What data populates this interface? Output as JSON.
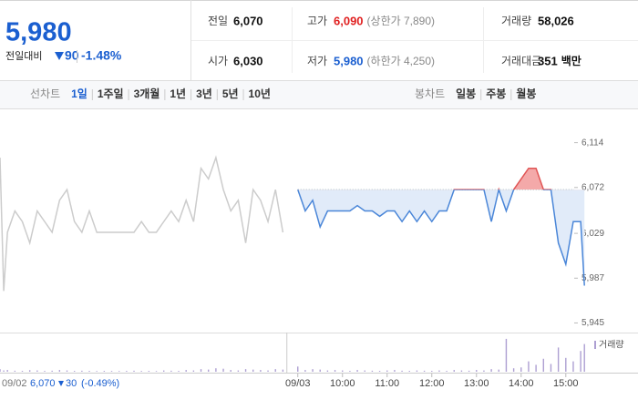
{
  "header": {
    "price": "5,980",
    "change_label": "전일대비",
    "change": "90",
    "change_pct": "-1.48%",
    "stats": [
      [
        {
          "label": "전일",
          "value": "6,070"
        },
        {
          "label": "고가",
          "value": "6,090",
          "note": "(상한가 7,890)"
        },
        {
          "label": "거래량",
          "value": "58,026"
        }
      ],
      [
        {
          "label": "시가",
          "value": "6,030"
        },
        {
          "label": "저가",
          "value": "5,980",
          "note": "(하한가 4,250)"
        },
        {
          "label": "거래대금",
          "value": "351",
          "unit": "백만"
        }
      ]
    ]
  },
  "tabs": {
    "line_label": "선차트",
    "line": [
      "1일",
      "1주일",
      "3개월",
      "1년",
      "3년",
      "5년",
      "10년"
    ],
    "candle_label": "봉차트",
    "candle": [
      "일봉",
      "주봉",
      "월봉"
    ]
  },
  "chart_data": {
    "type": "line",
    "xlim": [
      -400,
      408
    ],
    "ylim": [
      5936,
      6141
    ],
    "yticks": [
      {
        "value": 6114,
        "label": "6,114"
      },
      {
        "value": 6072,
        "label": "6,072"
      },
      {
        "value": 6029,
        "label": "6,029"
      },
      {
        "value": 5987,
        "label": "5,987"
      },
      {
        "value": 5945,
        "label": "5,945"
      }
    ],
    "xticks": [
      {
        "value": 0,
        "label": "09/03"
      },
      {
        "value": 60,
        "label": "10:00"
      },
      {
        "value": 120,
        "label": "11:00"
      },
      {
        "value": 180,
        "label": "12:00"
      },
      {
        "value": 240,
        "label": "13:00"
      },
      {
        "value": 300,
        "label": "14:00"
      },
      {
        "value": 360,
        "label": "15:00"
      }
    ],
    "baseline": 6070,
    "fill_above": "#f4a9a9",
    "fill_below": "#e1ebf9",
    "series": [
      {
        "color": "#cccccc",
        "x": [
          -400,
          -395,
          -390,
          -380,
          -370,
          -360,
          -350,
          -340,
          -330,
          -320,
          -310,
          -300,
          -290,
          -280,
          -270,
          -260,
          -250,
          -240,
          -230,
          -220,
          -210,
          -200,
          -190,
          -180,
          -170,
          -160,
          -150,
          -140,
          -130,
          -120,
          -110,
          -100,
          -90,
          -80,
          -70,
          -60,
          -50,
          -40,
          -30,
          -20
        ],
        "values": [
          6100,
          5975,
          6030,
          6050,
          6040,
          6020,
          6050,
          6040,
          6030,
          6060,
          6070,
          6040,
          6030,
          6050,
          6030,
          6030,
          6030,
          6030,
          6030,
          6030,
          6040,
          6030,
          6030,
          6040,
          6050,
          6040,
          6060,
          6040,
          6090,
          6080,
          6100,
          6070,
          6050,
          6060,
          6020,
          6070,
          6060,
          6040,
          6070,
          6030
        ]
      },
      {
        "color": "#4a86d8",
        "color_above": "#e05555",
        "x": [
          0,
          10,
          20,
          30,
          40,
          50,
          60,
          70,
          80,
          90,
          100,
          110,
          120,
          130,
          140,
          150,
          160,
          170,
          180,
          190,
          200,
          210,
          220,
          230,
          240,
          250,
          260,
          270,
          280,
          290,
          300,
          310,
          320,
          330,
          340,
          350,
          360,
          370,
          380,
          385
        ],
        "values": [
          6070,
          6050,
          6060,
          6035,
          6050,
          6050,
          6050,
          6050,
          6055,
          6050,
          6050,
          6045,
          6050,
          6050,
          6040,
          6050,
          6040,
          6050,
          6040,
          6050,
          6050,
          6070,
          6070,
          6070,
          6070,
          6070,
          6040,
          6070,
          6050,
          6070,
          6080,
          6090,
          6090,
          6070,
          6070,
          6020,
          6000,
          6040,
          6040,
          5980
        ]
      }
    ],
    "volume": {
      "name": "거래량",
      "color": "#ad9fd2",
      "ylim": [
        0,
        4000
      ],
      "x": [
        -400,
        -395,
        -390,
        -380,
        -370,
        -360,
        -350,
        -340,
        -330,
        -320,
        -310,
        -300,
        -290,
        -280,
        -270,
        -260,
        -250,
        -240,
        -230,
        -220,
        -210,
        -200,
        -190,
        -180,
        -170,
        -160,
        -150,
        -140,
        -130,
        -120,
        -110,
        -100,
        -90,
        -80,
        -70,
        -60,
        -50,
        -40,
        -30,
        -20,
        0,
        10,
        20,
        30,
        40,
        50,
        60,
        70,
        80,
        90,
        100,
        110,
        120,
        130,
        140,
        150,
        160,
        170,
        180,
        190,
        200,
        210,
        220,
        230,
        240,
        250,
        260,
        270,
        280,
        290,
        300,
        310,
        320,
        330,
        340,
        350,
        360,
        370,
        380,
        385
      ],
      "values": [
        300,
        150,
        200,
        120,
        100,
        180,
        150,
        100,
        120,
        200,
        150,
        100,
        120,
        100,
        80,
        100,
        90,
        80,
        100,
        120,
        90,
        100,
        80,
        150,
        120,
        100,
        200,
        150,
        300,
        250,
        400,
        350,
        200,
        150,
        300,
        250,
        200,
        150,
        300,
        250,
        600,
        200,
        300,
        250,
        150,
        200,
        150,
        100,
        200,
        150,
        120,
        100,
        150,
        200,
        120,
        100,
        150,
        120,
        100,
        150,
        100,
        200,
        150,
        120,
        200,
        150,
        300,
        250,
        3800,
        400,
        500,
        1200,
        800,
        1500,
        900,
        2800,
        1600,
        1200,
        2400,
        3200
      ]
    },
    "summary": {
      "date": "09/02",
      "close": "6,070",
      "change": "30",
      "change_pct": "(-0.49%)"
    }
  }
}
